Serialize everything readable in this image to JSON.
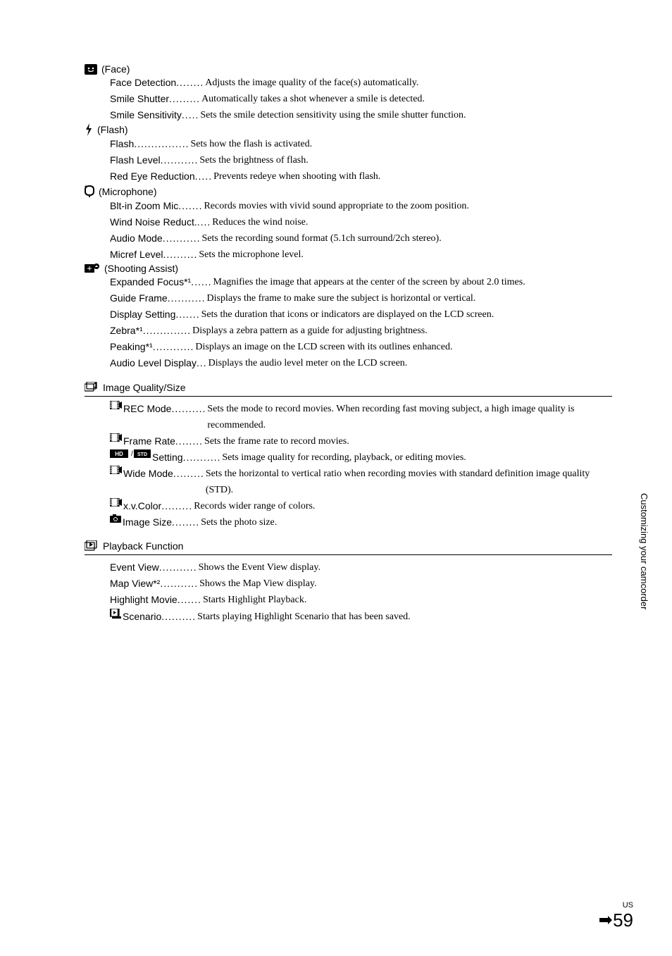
{
  "sidebar_text": "Customizing your camcorder",
  "footer_us": "US",
  "footer_page": "59",
  "groups": [
    {
      "icon": "face-icon",
      "title": "(Face)",
      "bordered": false,
      "items": [
        {
          "label": "Face Detection",
          "desc": "Adjusts the image quality of the face(s) automatically."
        },
        {
          "label": "Smile Shutter",
          "desc": "Automatically takes a shot whenever a smile is detected."
        },
        {
          "label": "Smile Sensitivity",
          "desc": "Sets the smile detection sensitivity using the smile shutter function."
        }
      ]
    },
    {
      "icon": "flash-icon",
      "title": "(Flash)",
      "bordered": false,
      "items": [
        {
          "label": "Flash",
          "desc": "Sets how the flash is activated."
        },
        {
          "label": "Flash Level",
          "desc": "Sets the brightness of flash."
        },
        {
          "label": "Red Eye Reduction",
          "desc": "Prevents redeye when shooting with flash."
        }
      ]
    },
    {
      "icon": "mic-icon",
      "title": "(Microphone)",
      "bordered": false,
      "items": [
        {
          "label": "Blt-in Zoom Mic",
          "desc": "Records movies with vivid sound appropriate to the zoom position."
        },
        {
          "label": "Wind Noise Reduct.",
          "desc": "Reduces the wind noise."
        },
        {
          "label": "Audio Mode",
          "desc": "Sets the recording sound format (5.1ch surround/2ch stereo)."
        },
        {
          "label": "Micref Level",
          "desc": "Sets the microphone level."
        }
      ]
    },
    {
      "icon": "assist-icon",
      "title": "(Shooting Assist)",
      "bordered": false,
      "items": [
        {
          "label": "Expanded Focus*¹",
          "desc": "Magnifies the image that appears at the center of the screen by about 2.0 times."
        },
        {
          "label": "Guide Frame",
          "desc": "Displays the frame to make sure the subject is horizontal or vertical."
        },
        {
          "label": "Display Setting",
          "desc": "Sets the duration that icons or indicators are displayed on the LCD screen."
        },
        {
          "label": "Zebra*¹",
          "desc": "Displays a zebra pattern as a guide for adjusting brightness."
        },
        {
          "label": "Peaking*¹",
          "desc": "Displays an image on the LCD screen with its outlines enhanced."
        },
        {
          "label": "Audio Level Display",
          "desc": "Displays the audio level meter on the LCD screen."
        }
      ]
    },
    {
      "icon": "quality-icon",
      "title": "Image Quality/Size",
      "bordered": true,
      "items": [
        {
          "icon": "movie-box-icon",
          "label": "REC Mode",
          "desc": "Sets the mode to record movies. When recording fast moving subject, a high image quality is recommended."
        },
        {
          "icon": "movie-box-icon",
          "label": "Frame Rate",
          "desc": "Sets the frame rate to record movies."
        },
        {
          "icon": "hd-std-icon",
          "label": "Setting",
          "desc": "Sets image quality for recording, playback, or editing movies."
        },
        {
          "icon": "movie-box-icon",
          "label": "Wide Mode",
          "desc": "Sets the horizontal to vertical ratio when recording movies with standard definition image quality (STD)."
        },
        {
          "icon": "movie-box-icon",
          "label": "x.v.Color",
          "desc": "Records wider range of colors."
        },
        {
          "icon": "photo-icon",
          "label": "Image Size",
          "desc": "Sets the photo size."
        }
      ]
    },
    {
      "icon": "playback-icon",
      "title": "Playback Function",
      "bordered": true,
      "items": [
        {
          "label": "Event View",
          "desc": "Shows the Event View display."
        },
        {
          "label": "Map View*²",
          "desc": "Shows the Map View display."
        },
        {
          "label": "Highlight Movie",
          "desc": "Starts Highlight Playback."
        },
        {
          "icon": "scenario-icon",
          "label": "Scenario",
          "desc": "Starts playing Highlight Scenario that has been saved."
        }
      ]
    }
  ]
}
